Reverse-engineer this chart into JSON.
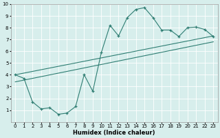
{
  "xlabel": "Humidex (Indice chaleur)",
  "bg_color": "#d7eeec",
  "grid_color": "#ffffff",
  "line_color": "#2e7d72",
  "xlim": [
    -0.5,
    23.5
  ],
  "ylim": [
    0,
    10
  ],
  "curve1_x": [
    0,
    1,
    2,
    3,
    4,
    5,
    6,
    7,
    8,
    9,
    10,
    11,
    12,
    13,
    14,
    15,
    16,
    17,
    18,
    19,
    20,
    21,
    22,
    23
  ],
  "curve1_y": [
    4.0,
    3.7,
    1.7,
    1.1,
    1.2,
    0.65,
    0.75,
    1.3,
    4.0,
    2.6,
    5.9,
    8.2,
    7.3,
    8.85,
    9.55,
    9.7,
    8.85,
    7.8,
    7.8,
    7.25,
    8.0,
    8.05,
    7.85,
    7.25
  ],
  "curve2_x": [
    0,
    23
  ],
  "curve2_y": [
    4.0,
    7.3
  ],
  "curve3_x": [
    0,
    23
  ],
  "curve3_y": [
    3.4,
    6.8
  ]
}
